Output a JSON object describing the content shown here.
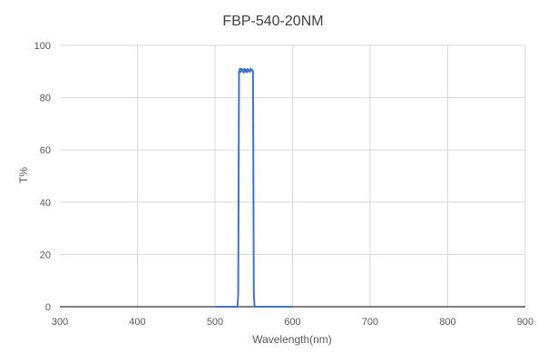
{
  "chart_data": {
    "type": "line",
    "title": "FBP-540-20NM",
    "xlabel": "Wavelength(nm)",
    "ylabel": "T%",
    "xlim": [
      300,
      900
    ],
    "ylim": [
      0,
      100
    ],
    "xticks": [
      300,
      400,
      500,
      600,
      700,
      800,
      900
    ],
    "yticks": [
      0,
      20,
      40,
      60,
      80,
      100
    ],
    "grid": true,
    "legend": "none",
    "colors": {
      "series": "#4472c4",
      "grid": "#d9d9d9",
      "axis": "#000000"
    },
    "series": [
      {
        "x": [
          500,
          529,
          530,
          531,
          532,
          533,
          534,
          535,
          536,
          537,
          538,
          539,
          540,
          541,
          542,
          543,
          544,
          545,
          546,
          547,
          548,
          549,
          550,
          551,
          552,
          600
        ],
        "y": [
          0,
          0,
          5,
          90,
          91,
          89.8,
          91,
          90.2,
          90.8,
          89.6,
          91,
          90,
          90.8,
          89.7,
          91,
          90.2,
          90.6,
          89.8,
          91,
          90.4,
          90.6,
          90,
          5,
          0,
          0,
          0
        ]
      }
    ]
  }
}
